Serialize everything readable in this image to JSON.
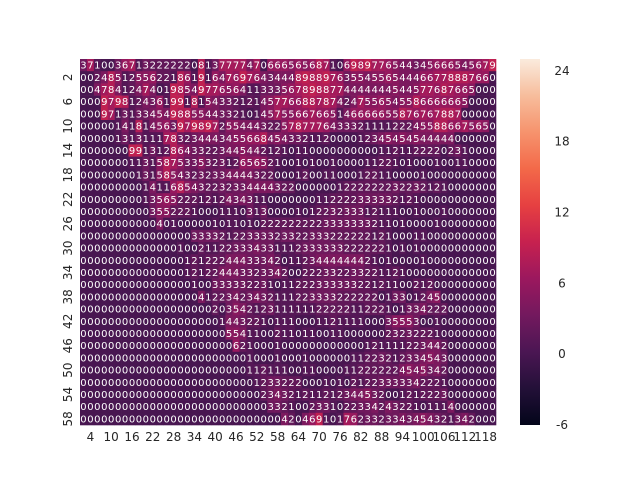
{
  "chart_data": {
    "type": "heatmap",
    "title": "",
    "xlabel": "",
    "ylabel": "",
    "x_tick_labels": [
      "4",
      "10",
      "16",
      "22",
      "28",
      "34",
      "40",
      "46",
      "52",
      "58",
      "64",
      "70",
      "76",
      "82",
      "88",
      "94",
      "100",
      "106",
      "112",
      "118"
    ],
    "y_tick_labels": [
      "2",
      "6",
      "10",
      "14",
      "18",
      "22",
      "26",
      "30",
      "34",
      "38",
      "42",
      "46",
      "50",
      "54",
      "58"
    ],
    "colorbar": {
      "range": [
        -6,
        25
      ],
      "ticks": [
        -6,
        0,
        6,
        12,
        18,
        24
      ],
      "colormap": "rocket"
    },
    "annotations": "integer value printed in every cell",
    "rows": [
      [
        3,
        7,
        1,
        0,
        0,
        3,
        6,
        7,
        1,
        3,
        2,
        2,
        2,
        2,
        2,
        2,
        0,
        8,
        1,
        3,
        7,
        7,
        7,
        7,
        4,
        7,
        0,
        6,
        6,
        6,
        5,
        6,
        5,
        6,
        8,
        7,
        1,
        0,
        6,
        9,
        8,
        9,
        7,
        7,
        6,
        5,
        4,
        4,
        3,
        4,
        5,
        6,
        6,
        6,
        5,
        4,
        5,
        6,
        7,
        9,
        6,
        7,
        7,
        7,
        7,
        7
      ],
      [
        0,
        0,
        2,
        4,
        8,
        5,
        1,
        2,
        5,
        5,
        6,
        2,
        2,
        1,
        8,
        6,
        1,
        9,
        1,
        6,
        4,
        7,
        6,
        9,
        7,
        6,
        4,
        3,
        4,
        4,
        4,
        8,
        9,
        8,
        8,
        9,
        7,
        6,
        3,
        5,
        5,
        4,
        5,
        5,
        6,
        5,
        4,
        4,
        4,
        6,
        6,
        7,
        7,
        8,
        8,
        8,
        7,
        6,
        6
      ],
      [
        0,
        0,
        4,
        7,
        8,
        4,
        1,
        2,
        4,
        7,
        4,
        0,
        1,
        9,
        8,
        5,
        4,
        9,
        7,
        7,
        6,
        5,
        6,
        4,
        1,
        1,
        3,
        3,
        3,
        5,
        6,
        7,
        8,
        9,
        8,
        8,
        7,
        7,
        4,
        4,
        4,
        4,
        4,
        4,
        4,
        5,
        4,
        4,
        5,
        7,
        7,
        6,
        8,
        7,
        6,
        6,
        5
      ],
      [
        0,
        0,
        0,
        9,
        7,
        9,
        8,
        1,
        2,
        4,
        3,
        6,
        1,
        9,
        9,
        1,
        8,
        1,
        5,
        4,
        3,
        3,
        2,
        1,
        2,
        1,
        4,
        5,
        7,
        7,
        6,
        6,
        8,
        8,
        7,
        8,
        7,
        4,
        2,
        4,
        7,
        5,
        5,
        6,
        5,
        4,
        5,
        5,
        8,
        6,
        6,
        6,
        6,
        6,
        6,
        5
      ],
      [
        0,
        0,
        0,
        9,
        7,
        1,
        3,
        1,
        3,
        3,
        4,
        5,
        4,
        9,
        8,
        8,
        5,
        5,
        4,
        4,
        3,
        3,
        2,
        1,
        0,
        1,
        4,
        5,
        7,
        5,
        5,
        6,
        6,
        7,
        6,
        6,
        5,
        1,
        4,
        6,
        6,
        6,
        6,
        6,
        5,
        5,
        8,
        7,
        6,
        7,
        6,
        7,
        8,
        8,
        7
      ],
      [
        0,
        0,
        0,
        0,
        0,
        1,
        4,
        1,
        8,
        1,
        4,
        5,
        6,
        3,
        9,
        7,
        9,
        8,
        9,
        7,
        2,
        5,
        5,
        4,
        4,
        4,
        3,
        2,
        2,
        5,
        7,
        8,
        7,
        7,
        7,
        6,
        4,
        3,
        3,
        3,
        2,
        1,
        1,
        1,
        1,
        2,
        2,
        2,
        4,
        5,
        5,
        8,
        8,
        6,
        6,
        7,
        5,
        6,
        5
      ],
      [
        0,
        0,
        0,
        0,
        0,
        1,
        3,
        1,
        3,
        1,
        1,
        1,
        7,
        8,
        3,
        2,
        3,
        4,
        4,
        4,
        3,
        4,
        5,
        5,
        6,
        6,
        8,
        4,
        5,
        4,
        3,
        3,
        2,
        1,
        1,
        2,
        0,
        0,
        0,
        0,
        1,
        2,
        3,
        4,
        5,
        4,
        5,
        4,
        5,
        4,
        4,
        4,
        4,
        4
      ],
      [
        0,
        0,
        0,
        0,
        0,
        0,
        0,
        9,
        9,
        1,
        3,
        1,
        2,
        8,
        6,
        4,
        3,
        3,
        2,
        2,
        3,
        4,
        4,
        5,
        4,
        4,
        2,
        1,
        2,
        1,
        0,
        1,
        1,
        0,
        0,
        0,
        0,
        0,
        0,
        0,
        0,
        0,
        0,
        1,
        1,
        2,
        1,
        1,
        2,
        2,
        2,
        2,
        0,
        2,
        3,
        1
      ],
      [
        0,
        0,
        0,
        0,
        0,
        0,
        0,
        1,
        1,
        3,
        1,
        5,
        8,
        7,
        5,
        3,
        3,
        5,
        3,
        2,
        3,
        1,
        2,
        6,
        5,
        6,
        5,
        2,
        1,
        0,
        0,
        1,
        0,
        1,
        0,
        0,
        1,
        0,
        0,
        0,
        0,
        1,
        1,
        2,
        2,
        1,
        0,
        1,
        0,
        0,
        0,
        1,
        0,
        0,
        1,
        1
      ],
      [
        0,
        0,
        0,
        0,
        0,
        0,
        0,
        0,
        1,
        3,
        1,
        5,
        8,
        5,
        4,
        3,
        2,
        3,
        2,
        3,
        3,
        4,
        4,
        4,
        4,
        3,
        2,
        2,
        0,
        0,
        0,
        1,
        2,
        0,
        0,
        1,
        1,
        0,
        0,
        0,
        1,
        2,
        2,
        1,
        1,
        0,
        0,
        0,
        0,
        1,
        0,
        0,
        0,
        0
      ],
      [
        0,
        0,
        0,
        0,
        0,
        0,
        0,
        0,
        0,
        1,
        4,
        1,
        1,
        6,
        8,
        5,
        4,
        3,
        2,
        2,
        3,
        2,
        3,
        3,
        4,
        4,
        4,
        4,
        3,
        2,
        2,
        0,
        0,
        0,
        0,
        0,
        0,
        1,
        2,
        2,
        2,
        2,
        2,
        2,
        2,
        3,
        2,
        2,
        3,
        2,
        1,
        2,
        1,
        0,
        0,
        0,
        0,
        0
      ],
      [
        0,
        0,
        0,
        0,
        0,
        0,
        0,
        0,
        0,
        1,
        3,
        5,
        6,
        5,
        2,
        2,
        2,
        1,
        2,
        1,
        2,
        4,
        3,
        4,
        3,
        1,
        1,
        0,
        0,
        0,
        0,
        0,
        0,
        0,
        1,
        1,
        2,
        2,
        2,
        2,
        3,
        3,
        3,
        3,
        3,
        2,
        1,
        2,
        1,
        0,
        0,
        0,
        0,
        0
      ],
      [
        0,
        0,
        0,
        0,
        0,
        0,
        0,
        0,
        0,
        0,
        3,
        5,
        5,
        2,
        2,
        2,
        1,
        0,
        0,
        0,
        1,
        1,
        1,
        0,
        3,
        1,
        3,
        0,
        0,
        0,
        0,
        1,
        0,
        1,
        2,
        2,
        3,
        2,
        3,
        3,
        3,
        1,
        2,
        1,
        1,
        1,
        0,
        0,
        1,
        0,
        0,
        0,
        1
      ],
      [
        0,
        0,
        0,
        0,
        0,
        0,
        0,
        0,
        0,
        0,
        0,
        4,
        0,
        1,
        0,
        0,
        0,
        0,
        0,
        1,
        0,
        1,
        1,
        0,
        1,
        0,
        2,
        2,
        2,
        2,
        2,
        2,
        2,
        2,
        2,
        3,
        3,
        3,
        3,
        3,
        3,
        3,
        2,
        1,
        1,
        0,
        1,
        0,
        0,
        0,
        0,
        1,
        0
      ],
      [
        0,
        0,
        0,
        0,
        0,
        0,
        0,
        0,
        0,
        0,
        0,
        0,
        0,
        0,
        0,
        0,
        3,
        3,
        3,
        3,
        2,
        1,
        2,
        2,
        3,
        3,
        3,
        3,
        2,
        3,
        3,
        2,
        2,
        3,
        3,
        3,
        2,
        2,
        2,
        2,
        2,
        2,
        1,
        2,
        1,
        0,
        0,
        0,
        1,
        1,
        0
      ],
      [
        0,
        0,
        0,
        0,
        0,
        0,
        0,
        0,
        0,
        0,
        0,
        0,
        0,
        0,
        1,
        0,
        0,
        2,
        1,
        1,
        2,
        2,
        3,
        3,
        3,
        4,
        3,
        3,
        1,
        1,
        1,
        2,
        3,
        3,
        3,
        3,
        3,
        3,
        2,
        2,
        2,
        2,
        2,
        2,
        1,
        0,
        1,
        0,
        1,
        0
      ],
      [
        0,
        0,
        0,
        0,
        0,
        0,
        0,
        0,
        0,
        0,
        0,
        0,
        0,
        0,
        0,
        1,
        2,
        1,
        2,
        2,
        2,
        4,
        4,
        4,
        3,
        3,
        3,
        4,
        2,
        0,
        1,
        1,
        2,
        3,
        4,
        4,
        4,
        4,
        4,
        4,
        4,
        2,
        1,
        0,
        1,
        0,
        0,
        0,
        0,
        1
      ],
      [
        0,
        0,
        0,
        0,
        0,
        0,
        0,
        0,
        0,
        0,
        0,
        0,
        0,
        0,
        0,
        1,
        2,
        1,
        2,
        2,
        4,
        4,
        4,
        3,
        3,
        2,
        3,
        3,
        4,
        2,
        0,
        0,
        2,
        2,
        2,
        3,
        3,
        2,
        2,
        3,
        3,
        2,
        2,
        1,
        1,
        2,
        1,
        0,
        0,
        0,
        0
      ],
      [
        0,
        0,
        0,
        0,
        0,
        0,
        0,
        0,
        0,
        0,
        0,
        0,
        0,
        0,
        0,
        0,
        1,
        0,
        0,
        3,
        3,
        3,
        3,
        3,
        2,
        2,
        3,
        1,
        0,
        1,
        1,
        2,
        2,
        2,
        3,
        3,
        3,
        3,
        3,
        3,
        2,
        2,
        1,
        2,
        1,
        1,
        0,
        0,
        2,
        1,
        2
      ],
      [
        0,
        0,
        0,
        0,
        0,
        0,
        0,
        0,
        0,
        0,
        0,
        0,
        0,
        0,
        0,
        0,
        0,
        4,
        1,
        2,
        2,
        3,
        4,
        2,
        3,
        4,
        3,
        2,
        1,
        1,
        1,
        2,
        2,
        3,
        3,
        3,
        3,
        2,
        2,
        2,
        2,
        2,
        2,
        0,
        1,
        3,
        3,
        0,
        1,
        2,
        4,
        5
      ],
      [
        0,
        0,
        0,
        0,
        0,
        0,
        0,
        0,
        0,
        0,
        0,
        0,
        0,
        0,
        0,
        0,
        0,
        0,
        0,
        2,
        0,
        3,
        5,
        4,
        2,
        1,
        2,
        3,
        1,
        1,
        1,
        1,
        1,
        1,
        2,
        2,
        2,
        2,
        2,
        1,
        1,
        2,
        2,
        2,
        1,
        0,
        1,
        3,
        3,
        4,
        2,
        2,
        2
      ],
      [
        0,
        0,
        0,
        0,
        0,
        0,
        0,
        0,
        0,
        0,
        0,
        0,
        0,
        0,
        0,
        0,
        0,
        0,
        0,
        0,
        1,
        4,
        4,
        3,
        2,
        2,
        1,
        0,
        1,
        1,
        1,
        0,
        0,
        0,
        1,
        1,
        2,
        1,
        1,
        1,
        1,
        0,
        0,
        0,
        3,
        5,
        5,
        5,
        3,
        0,
        0,
        1
      ],
      [
        0,
        0,
        0,
        0,
        0,
        0,
        0,
        0,
        0,
        0,
        0,
        0,
        0,
        0,
        0,
        0,
        0,
        0,
        0,
        0,
        0,
        5,
        5,
        4,
        1,
        1,
        0,
        0,
        2,
        1,
        1,
        0,
        1,
        1,
        0,
        0,
        1,
        1,
        0,
        0,
        0,
        0,
        0,
        0,
        2,
        3,
        2,
        3,
        2,
        2,
        2,
        1
      ],
      [
        0,
        0,
        0,
        0,
        0,
        0,
        0,
        0,
        0,
        0,
        0,
        0,
        0,
        0,
        0,
        0,
        0,
        0,
        0,
        0,
        0,
        0,
        6,
        2,
        1,
        0,
        0,
        0,
        1,
        0,
        0,
        0,
        0,
        0,
        0,
        0,
        0,
        0,
        0,
        0,
        0,
        1,
        2,
        1,
        1,
        1,
        1,
        2,
        2,
        3,
        4,
        4,
        2
      ],
      [
        0,
        0,
        0,
        0,
        0,
        0,
        0,
        0,
        0,
        0,
        0,
        0,
        0,
        0,
        0,
        0,
        0,
        0,
        0,
        0,
        0,
        0,
        0,
        0,
        1,
        0,
        0,
        0,
        1,
        0,
        0,
        0,
        1,
        0,
        0,
        0,
        0,
        0,
        0,
        1,
        1,
        2,
        2,
        3,
        2,
        1,
        2,
        3,
        3,
        4,
        5,
        4,
        3
      ],
      [
        0,
        0,
        0,
        0,
        0,
        0,
        0,
        0,
        0,
        0,
        0,
        0,
        0,
        0,
        0,
        0,
        0,
        0,
        0,
        0,
        0,
        0,
        0,
        0,
        1,
        1,
        2,
        1,
        1,
        1,
        0,
        0,
        1,
        1,
        0,
        0,
        0,
        0,
        1,
        1,
        2,
        2,
        2,
        2,
        2,
        2,
        4,
        5,
        4,
        5,
        3,
        4,
        2
      ],
      [
        0,
        0,
        0,
        0,
        0,
        0,
        0,
        0,
        0,
        0,
        0,
        0,
        0,
        0,
        0,
        0,
        0,
        0,
        0,
        0,
        0,
        0,
        0,
        0,
        0,
        1,
        2,
        3,
        3,
        2,
        2,
        2,
        0,
        0,
        0,
        1,
        0,
        1,
        0,
        2,
        1,
        2,
        2,
        3,
        3,
        3,
        3,
        3,
        4,
        2,
        2,
        2,
        1
      ],
      [
        0,
        0,
        0,
        0,
        0,
        0,
        0,
        0,
        0,
        0,
        0,
        0,
        0,
        0,
        0,
        0,
        0,
        0,
        0,
        0,
        0,
        0,
        0,
        0,
        0,
        0,
        2,
        3,
        4,
        3,
        2,
        1,
        2,
        1,
        1,
        2,
        1,
        2,
        3,
        4,
        4,
        5,
        3,
        2,
        0,
        0,
        1,
        2,
        1,
        2,
        2,
        2,
        3
      ],
      [
        0,
        0,
        0,
        0,
        0,
        0,
        0,
        0,
        0,
        0,
        0,
        0,
        0,
        0,
        0,
        0,
        0,
        0,
        0,
        0,
        0,
        0,
        0,
        0,
        0,
        0,
        0,
        3,
        3,
        2,
        1,
        0,
        0,
        2,
        3,
        3,
        1,
        0,
        2,
        2,
        3,
        3,
        4,
        2,
        4,
        3,
        2,
        2,
        1,
        0,
        1,
        1,
        1,
        4
      ],
      [
        0,
        0,
        0,
        0,
        0,
        0,
        0,
        0,
        0,
        0,
        0,
        0,
        0,
        0,
        0,
        0,
        0,
        0,
        0,
        0,
        0,
        0,
        0,
        0,
        0,
        0,
        0,
        0,
        0,
        4,
        2,
        0,
        4,
        6,
        9,
        1,
        0,
        1,
        7,
        6,
        2,
        3,
        3,
        2,
        3,
        3,
        4,
        3,
        4,
        5,
        4,
        3,
        2,
        1,
        3,
        4,
        2
      ]
    ]
  }
}
